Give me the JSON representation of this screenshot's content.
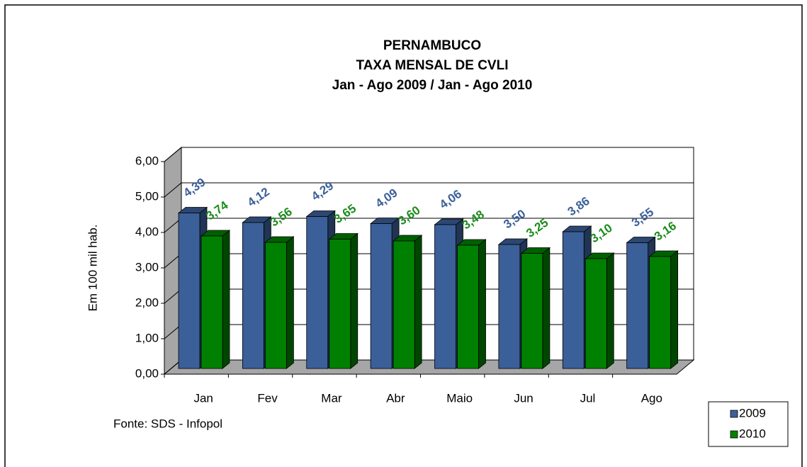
{
  "chart_data": {
    "type": "bar3d",
    "title": [
      "PERNAMBUCO",
      "TAXA MENSAL DE CVLI",
      "Jan - Ago 2009 / Jan - Ago 2010"
    ],
    "y_label": "Em 100 mil hab.",
    "source": "Fonte: SDS - Infopol",
    "categories": [
      "Jan",
      "Fev",
      "Mar",
      "Abr",
      "Maio",
      "Jun",
      "Jul",
      "Ago"
    ],
    "series": [
      {
        "name": "2009",
        "color": "#3b5f98",
        "label_color": "#3b5f98",
        "values": [
          4.39,
          4.12,
          4.29,
          4.09,
          4.06,
          3.5,
          3.86,
          3.55
        ],
        "value_labels": [
          "4,39",
          "4,12",
          "4,29",
          "4,09",
          "4,06",
          "3,50",
          "3,86",
          "3,55"
        ]
      },
      {
        "name": "2010",
        "color": "#008000",
        "label_color": "#1a8c1a",
        "values": [
          3.74,
          3.56,
          3.65,
          3.6,
          3.48,
          3.25,
          3.1,
          3.16
        ],
        "value_labels": [
          "3,74",
          "3,56",
          "3,65",
          "3,60",
          "3,48",
          "3,25",
          "3,10",
          "3,16"
        ]
      }
    ],
    "ylim": [
      0,
      6
    ],
    "yticks": [
      {
        "value": 0,
        "label": "0,00"
      },
      {
        "value": 1,
        "label": "1,00"
      },
      {
        "value": 2,
        "label": "2,00"
      },
      {
        "value": 3,
        "label": "3,00"
      },
      {
        "value": 4,
        "label": "4,00"
      },
      {
        "value": 5,
        "label": "5,00"
      },
      {
        "value": 6,
        "label": "6,00"
      }
    ],
    "grid": true,
    "legend": "bottom-right"
  }
}
